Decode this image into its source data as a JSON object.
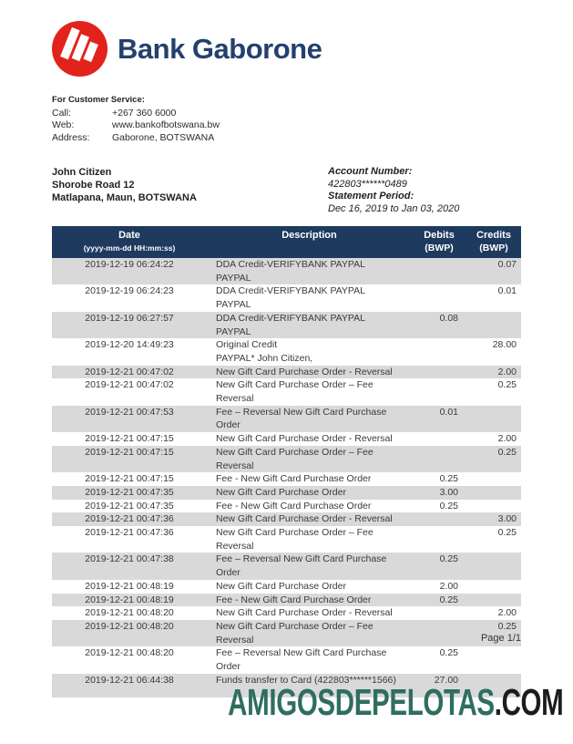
{
  "brand": {
    "name": "Bank Gaborone",
    "logo_color": "#e2231c",
    "name_color": "#24406e"
  },
  "customer_service": {
    "heading": "For Customer Service:",
    "rows": [
      {
        "label": "Call:",
        "value": "+267 360 6000"
      },
      {
        "label": "Web:",
        "value": "www.bankofbotswana.bw"
      },
      {
        "label": "Address:",
        "value": "Gaborone, BOTSWANA"
      }
    ]
  },
  "customer": {
    "name": "John Citizen",
    "address_line1": "Shorobe Road 12",
    "address_line2": "Matlapana, Maun, BOTSWANA"
  },
  "account": {
    "account_number_label": "Account Number:",
    "account_number": "422803******0489",
    "statement_period_label": "Statement Period:",
    "statement_period": "Dec 16, 2019 to Jan 03, 2020"
  },
  "table": {
    "headers": {
      "date": "Date",
      "date_sub": "(yyyy-mm-dd HH:mm:ss)",
      "description": "Description",
      "debits": "Debits",
      "debits_sub": "(BWP)",
      "credits": "Credits",
      "credits_sub": "(BWP)"
    },
    "rows": [
      {
        "date": "2019-12-19 06:24:22",
        "desc": [
          "DDA Credit-VERIFYBANK PAYPAL",
          "PAYPAL"
        ],
        "debit": "",
        "credit": "0.07"
      },
      {
        "date": "2019-12-19 06:24:23",
        "desc": [
          "DDA Credit-VERIFYBANK PAYPAL",
          "PAYPAL"
        ],
        "debit": "",
        "credit": "0.01"
      },
      {
        "date": "2019-12-19 06:27:57",
        "desc": [
          "DDA Credit-VERIFYBANK PAYPAL",
          "PAYPAL"
        ],
        "debit": "0.08",
        "credit": ""
      },
      {
        "date": "2019-12-20 14:49:23",
        "desc": [
          "Original Credit",
          "PAYPAL* John Citizen,"
        ],
        "debit": "",
        "credit": "28.00"
      },
      {
        "date": "2019-12-21 00:47:02",
        "desc": [
          "New Gift Card Purchase Order - Reversal"
        ],
        "debit": "",
        "credit": "2.00"
      },
      {
        "date": "2019-12-21 00:47:02",
        "desc": [
          "New Gift Card Purchase Order – Fee Reversal"
        ],
        "debit": "",
        "credit": "0.25"
      },
      {
        "date": "2019-12-21 00:47:53",
        "desc": [
          "Fee – Reversal New Gift Card Purchase Order"
        ],
        "debit": "0.01",
        "credit": ""
      },
      {
        "date": "2019-12-21 00:47:15",
        "desc": [
          "New Gift Card Purchase Order - Reversal"
        ],
        "debit": "",
        "credit": "2.00"
      },
      {
        "date": "2019-12-21 00:47:15",
        "desc": [
          "New Gift Card Purchase Order – Fee Reversal"
        ],
        "debit": "",
        "credit": "0.25"
      },
      {
        "date": "2019-12-21 00:47:15",
        "desc": [
          "Fee - New Gift Card Purchase Order"
        ],
        "debit": "0.25",
        "credit": ""
      },
      {
        "date": "2019-12-21 00:47:35",
        "desc": [
          "New Gift Card Purchase Order"
        ],
        "debit": "3.00",
        "credit": ""
      },
      {
        "date": "2019-12-21 00:47:35",
        "desc": [
          "Fee - New Gift Card Purchase Order"
        ],
        "debit": "0.25",
        "credit": ""
      },
      {
        "date": "2019-12-21 00:47:36",
        "desc": [
          "New Gift Card Purchase Order - Reversal"
        ],
        "debit": "",
        "credit": "3.00"
      },
      {
        "date": "2019-12-21 00:47:36",
        "desc": [
          "New Gift Card Purchase Order – Fee Reversal"
        ],
        "debit": "",
        "credit": "0.25"
      },
      {
        "date": "2019-12-21 00:47:38",
        "desc": [
          "Fee – Reversal New Gift Card Purchase Order"
        ],
        "debit": "0.25",
        "credit": ""
      },
      {
        "date": "2019-12-21 00:48:19",
        "desc": [
          "New Gift Card Purchase Order"
        ],
        "debit": "2.00",
        "credit": ""
      },
      {
        "date": "2019-12-21 00:48:19",
        "desc": [
          "Fee - New Gift Card Purchase Order"
        ],
        "debit": "0.25",
        "credit": ""
      },
      {
        "date": "2019-12-21 00:48:20",
        "desc": [
          "New Gift Card Purchase Order - Reversal"
        ],
        "debit": "",
        "credit": "2.00"
      },
      {
        "date": "2019-12-21 00:48:20",
        "desc": [
          "New Gift Card Purchase Order – Fee Reversal"
        ],
        "debit": "",
        "credit": "0.25"
      },
      {
        "date": "2019-12-21 00:48:20",
        "desc": [
          "Fee – Reversal New Gift Card Purchase Order"
        ],
        "debit": "0.25",
        "credit": ""
      },
      {
        "date": "2019-12-21 06:44:38",
        "desc": [
          "Funds transfer to Card (422803******1566)"
        ],
        "debit": "27.00",
        "credit": ""
      }
    ]
  },
  "footer": {
    "page": "Page 1/1"
  },
  "watermark": {
    "main": "AMIGOSDEPELOTAS",
    "suffix": ".COM"
  },
  "colors": {
    "table_header_bg": "#1e3a5e",
    "row_shade": "#d9d9d9",
    "brand_red": "#e2231c",
    "brand_navy": "#24406e",
    "watermark_green": "#2e6e5f",
    "watermark_dark": "#1c1c1c"
  }
}
